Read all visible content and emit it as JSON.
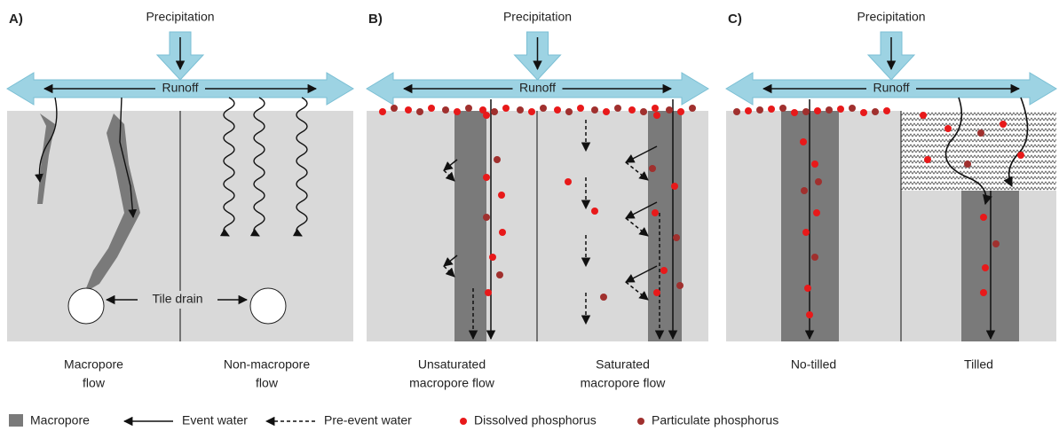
{
  "panels": [
    {
      "label": "A)",
      "precipitation": "Precipitation",
      "runoff": "Runoff",
      "tile_drain": "Tile drain",
      "captions": [
        [
          "Macropore",
          "flow"
        ],
        [
          "Non-macropore",
          "flow"
        ]
      ]
    },
    {
      "label": "B)",
      "precipitation": "Precipitation",
      "runoff": "Runoff",
      "captions": [
        [
          "Unsaturated",
          "macropore flow"
        ],
        [
          "Saturated",
          "macropore flow"
        ]
      ]
    },
    {
      "label": "C)",
      "precipitation": "Precipitation",
      "runoff": "Runoff",
      "captions": [
        [
          "No-tilled"
        ],
        [
          "Tilled"
        ]
      ]
    }
  ],
  "legend": [
    "Macropore",
    "Event water",
    "Pre-event water",
    "Dissolved phosphorus",
    "Particulate phosphorus"
  ]
}
